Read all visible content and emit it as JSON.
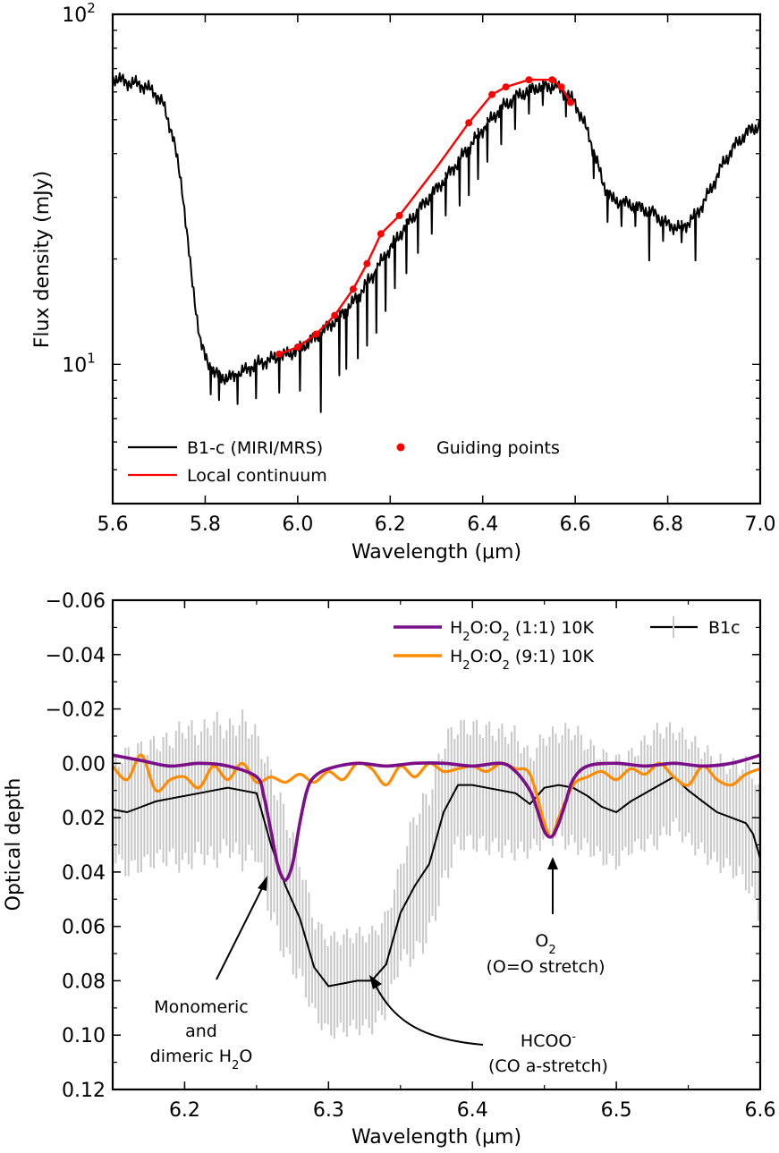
{
  "chart_data": [
    {
      "type": "line",
      "panel": "top",
      "xlabel": "Wavelength (μm)",
      "ylabel": "Flux density (mJy)",
      "xlim": [
        5.6,
        7.0
      ],
      "ylim": [
        4.0,
        100
      ],
      "yscale": "log",
      "x_ticks": [
        "5.6",
        "5.8",
        "6.0",
        "6.2",
        "6.4",
        "6.6",
        "6.8",
        "7.0"
      ],
      "y_tick_labels": [
        {
          "value": 10,
          "base": "10",
          "exp": "1"
        },
        {
          "value": 100,
          "base": "10",
          "exp": "2"
        }
      ],
      "legend_position": "lower-left",
      "series": [
        {
          "name": "B1-c (MIRI/MRS)",
          "color": "#000000",
          "x": [
            5.6,
            5.63,
            5.66,
            5.69,
            5.71,
            5.73,
            5.75,
            5.77,
            5.79,
            5.8,
            5.82,
            5.85,
            5.88,
            5.91,
            5.94,
            5.97,
            6.0,
            6.04,
            6.08,
            6.12,
            6.16,
            6.2,
            6.24,
            6.28,
            6.32,
            6.36,
            6.4,
            6.44,
            6.48,
            6.52,
            6.56,
            6.6,
            6.63,
            6.66,
            6.68,
            6.71,
            6.74,
            6.77,
            6.8,
            6.83,
            6.86,
            6.89,
            6.92,
            6.95,
            6.98,
            7.0
          ],
          "values": [
            66,
            64,
            63,
            60,
            55,
            45,
            32,
            18,
            11.5,
            10.5,
            9.4,
            9.1,
            9.5,
            10.0,
            10.3,
            10.6,
            11.0,
            12.0,
            13.3,
            15.0,
            17.8,
            21.5,
            25.5,
            29.5,
            34.0,
            40.0,
            47.0,
            54.0,
            59.0,
            62.0,
            62.5,
            56.0,
            45.0,
            33.0,
            29.5,
            28.8,
            28.0,
            27.0,
            25.0,
            24.5,
            26.5,
            31.0,
            37.5,
            43.0,
            47.0,
            48.0
          ],
          "absorption_lines": [
            [
              5.812,
              8.2
            ],
            [
              5.83,
              7.9
            ],
            [
              5.87,
              7.7
            ],
            [
              5.91,
              8.0
            ],
            [
              5.96,
              8.3
            ],
            [
              6.005,
              8.4
            ],
            [
              6.05,
              7.3
            ],
            [
              6.09,
              9.3
            ],
            [
              6.105,
              9.7
            ],
            [
              6.13,
              10.4
            ],
            [
              6.15,
              11.3
            ],
            [
              6.17,
              12.3
            ],
            [
              6.19,
              14.2
            ],
            [
              6.21,
              16.5
            ],
            [
              6.235,
              18.2
            ],
            [
              6.26,
              20.8
            ],
            [
              6.29,
              23.6
            ],
            [
              6.32,
              26.6
            ],
            [
              6.35,
              28.4
            ],
            [
              6.37,
              30.4
            ],
            [
              6.39,
              33.8
            ],
            [
              6.41,
              37.9
            ],
            [
              6.44,
              42.5
            ],
            [
              6.47,
              47.0
            ],
            [
              6.5,
              52.0
            ],
            [
              6.53,
              55.0
            ],
            [
              6.58,
              51.0
            ],
            [
              6.64,
              34.0
            ],
            [
              6.67,
              25.5
            ],
            [
              6.7,
              24.8
            ],
            [
              6.73,
              24.8
            ],
            [
              6.76,
              19.8
            ],
            [
              6.79,
              22.5
            ],
            [
              6.83,
              22.3
            ],
            [
              6.86,
              19.8
            ]
          ]
        },
        {
          "name": "Local continuum",
          "color": "#ff0000",
          "x": [
            5.96,
            6.0,
            6.04,
            6.08,
            6.12,
            6.15,
            6.18,
            6.22,
            6.3,
            6.37,
            6.42,
            6.45,
            6.5,
            6.55,
            6.57,
            6.59
          ],
          "values": [
            10.7,
            11.2,
            12.2,
            13.8,
            16.4,
            19.4,
            23.6,
            26.6,
            36.5,
            49.0,
            59.0,
            62.0,
            65.0,
            65.0,
            62.0,
            56.0
          ]
        },
        {
          "name": "Guiding points",
          "color": "#ff0000",
          "marker": "circle",
          "x": [
            5.96,
            6.0,
            6.04,
            6.08,
            6.12,
            6.15,
            6.18,
            6.22,
            6.37,
            6.42,
            6.45,
            6.5,
            6.55,
            6.57,
            6.59
          ],
          "values": [
            10.7,
            11.2,
            12.2,
            13.8,
            16.4,
            19.4,
            23.6,
            26.6,
            49.0,
            59.0,
            62.0,
            65.0,
            65.0,
            62.0,
            56.0
          ]
        }
      ]
    },
    {
      "type": "line",
      "panel": "bottom",
      "xlabel": "Wavelength (μm)",
      "ylabel": "Optical depth",
      "xlim": [
        6.15,
        6.6
      ],
      "ylim": [
        0.12,
        -0.06
      ],
      "y_inverted": true,
      "x_ticks": [
        "6.2",
        "6.3",
        "6.4",
        "6.5",
        "6.6"
      ],
      "y_ticks": [
        "−0.06",
        "−0.04",
        "−0.02",
        "0.00",
        "0.02",
        "0.04",
        "0.06",
        "0.08",
        "0.10",
        "0.12"
      ],
      "legend_position": "top-right",
      "series": [
        {
          "name": "H2O:O2 (1:1) 10K",
          "label_parts": {
            "a": "H",
            "a_sub": "2",
            "b": "O:O",
            "b_sub": "2",
            "c": " (1:1) 10K"
          },
          "color": "#7a0f87",
          "x": [
            6.15,
            6.17,
            6.19,
            6.21,
            6.23,
            6.25,
            6.255,
            6.26,
            6.265,
            6.27,
            6.275,
            6.28,
            6.285,
            6.29,
            6.3,
            6.32,
            6.34,
            6.36,
            6.38,
            6.4,
            6.42,
            6.43,
            6.44,
            6.445,
            6.45,
            6.455,
            6.46,
            6.465,
            6.47,
            6.48,
            6.5,
            6.52,
            6.54,
            6.56,
            6.58,
            6.6
          ],
          "values": [
            -0.003,
            -0.001,
            0.001,
            0.0,
            0.001,
            0.005,
            0.012,
            0.025,
            0.038,
            0.043,
            0.037,
            0.022,
            0.01,
            0.005,
            0.002,
            0.0,
            0.001,
            0.0,
            0.0,
            0.001,
            0.0,
            0.003,
            0.01,
            0.017,
            0.025,
            0.027,
            0.022,
            0.014,
            0.006,
            0.001,
            0.0,
            0.001,
            0.0,
            0.001,
            0.0,
            -0.003
          ]
        },
        {
          "name": "H2O:O2 (9:1) 10K",
          "label_parts": {
            "a": "H",
            "a_sub": "2",
            "b": "O:O",
            "b_sub": "2",
            "c": " (9:1) 10K"
          },
          "color": "#ff8c00",
          "x": [
            6.15,
            6.16,
            6.17,
            6.18,
            6.19,
            6.2,
            6.21,
            6.22,
            6.23,
            6.24,
            6.25,
            6.26,
            6.27,
            6.28,
            6.29,
            6.3,
            6.31,
            6.32,
            6.33,
            6.34,
            6.35,
            6.36,
            6.37,
            6.38,
            6.39,
            6.4,
            6.41,
            6.42,
            6.43,
            6.44,
            6.45,
            6.455,
            6.46,
            6.47,
            6.48,
            6.49,
            6.5,
            6.51,
            6.52,
            6.53,
            6.54,
            6.55,
            6.56,
            6.57,
            6.58,
            6.59,
            6.6
          ],
          "values": [
            0.001,
            0.006,
            -0.003,
            0.01,
            0.006,
            0.005,
            0.009,
            0.001,
            0.006,
            0.0,
            0.007,
            0.005,
            0.007,
            0.004,
            0.007,
            0.003,
            0.006,
            0.0,
            0.002,
            0.008,
            0.001,
            0.005,
            0.0,
            0.003,
            0.002,
            0.001,
            0.003,
            0.0,
            0.002,
            0.004,
            0.022,
            0.027,
            0.02,
            0.008,
            0.005,
            0.003,
            0.006,
            0.002,
            0.004,
            0.0,
            0.005,
            0.008,
            0.001,
            0.006,
            0.008,
            0.004,
            0.002
          ]
        },
        {
          "name": "B1c",
          "color": "#000000",
          "errorbar_color": "#c8c8c8",
          "x": [
            6.15,
            6.16,
            6.17,
            6.18,
            6.19,
            6.2,
            6.21,
            6.22,
            6.23,
            6.24,
            6.25,
            6.26,
            6.27,
            6.28,
            6.29,
            6.3,
            6.31,
            6.32,
            6.33,
            6.34,
            6.35,
            6.36,
            6.37,
            6.38,
            6.39,
            6.4,
            6.41,
            6.42,
            6.43,
            6.44,
            6.45,
            6.46,
            6.47,
            6.48,
            6.49,
            6.5,
            6.51,
            6.52,
            6.53,
            6.54,
            6.55,
            6.56,
            6.57,
            6.58,
            6.59,
            6.595,
            6.6
          ],
          "values": [
            0.017,
            0.018,
            0.016,
            0.014,
            0.013,
            0.012,
            0.011,
            0.01,
            0.009,
            0.01,
            0.011,
            0.03,
            0.045,
            0.057,
            0.075,
            0.082,
            0.081,
            0.08,
            0.08,
            0.074,
            0.055,
            0.045,
            0.037,
            0.018,
            0.008,
            0.008,
            0.009,
            0.01,
            0.011,
            0.015,
            0.009,
            0.008,
            0.009,
            0.012,
            0.016,
            0.018,
            0.014,
            0.011,
            0.008,
            0.005,
            0.01,
            0.014,
            0.018,
            0.02,
            0.022,
            0.026,
            0.035
          ],
          "errors": [
            0.02,
            0.025,
            0.025,
            0.025,
            0.025,
            0.03,
            0.025,
            0.03,
            0.025,
            0.03,
            0.025,
            0.03,
            0.03,
            0.025,
            0.02,
            0.02,
            0.02,
            0.02,
            0.02,
            0.02,
            0.02,
            0.03,
            0.03,
            0.03,
            0.025,
            0.025,
            0.025,
            0.025,
            0.025,
            0.02,
            0.022,
            0.022,
            0.025,
            0.022,
            0.022,
            0.022,
            0.02,
            0.022,
            0.024,
            0.02,
            0.022,
            0.022,
            0.022,
            0.022,
            0.025,
            0.028,
            0.025
          ]
        }
      ],
      "annotations": [
        {
          "lines": [
            "Monomeric",
            "and"
          ],
          "last_line": {
            "a": "dimeric H",
            "a_sub": "2",
            "b": "O"
          }
        },
        {
          "line1": {
            "a": "O",
            "a_sub": "2"
          },
          "line2": "(O=O stretch)"
        },
        {
          "line1": {
            "a": "HCOO",
            "a_sup": "-"
          },
          "line2": "(CO a-stretch)"
        }
      ]
    }
  ]
}
